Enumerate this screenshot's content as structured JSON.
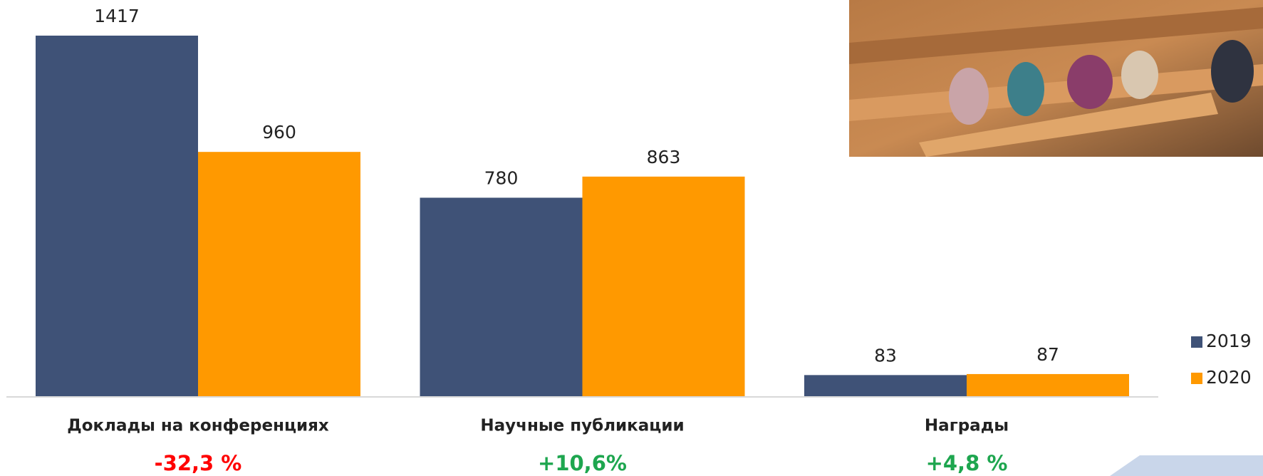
{
  "chart_data": {
    "type": "bar",
    "categories": [
      "Доклады на конференциях",
      "Научные публикации",
      "Награды"
    ],
    "changes": [
      "-32,3 %",
      "+10,6%",
      "+4,8 %"
    ],
    "change_colors": [
      "#ff0000",
      "#1ea64f",
      "#1ea64f"
    ],
    "series": [
      {
        "name": "2019",
        "color": "#3f5277",
        "values": [
          1417,
          780,
          83
        ]
      },
      {
        "name": "2020",
        "color": "#ff9900",
        "values": [
          960,
          863,
          87
        ]
      }
    ],
    "legend": "right"
  }
}
